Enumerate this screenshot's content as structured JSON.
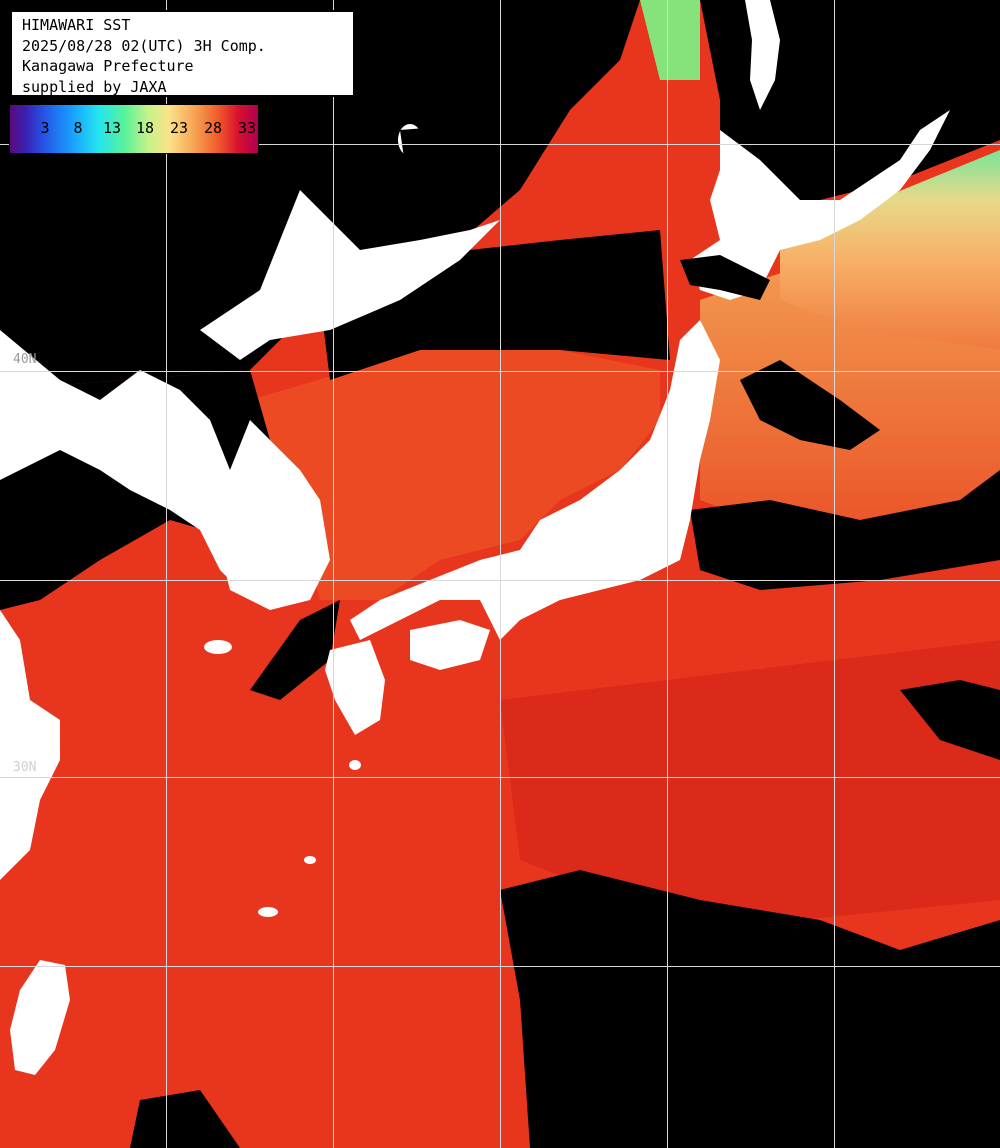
{
  "header": {
    "title": "HIMAWARI SST",
    "datetime": "2025/08/28 02(UTC) 3H Comp.",
    "region": "Kanagawa Prefecture",
    "credit": "supplied by JAXA"
  },
  "legend": {
    "ticks": [
      "3",
      "8",
      "13",
      "18",
      "23",
      "28",
      "33"
    ]
  },
  "grid_labels": {
    "lat_40": "40N",
    "lat_30": "30N"
  },
  "colors": {
    "land": "#ffffff",
    "cloud_missing": "#000000",
    "warm_sea": "#e8321c",
    "hot_sea": "#d41a1a",
    "cool_sea": "#f49a4a",
    "cold_sea": "#7ae48a",
    "grid": "#d9d9d9"
  }
}
